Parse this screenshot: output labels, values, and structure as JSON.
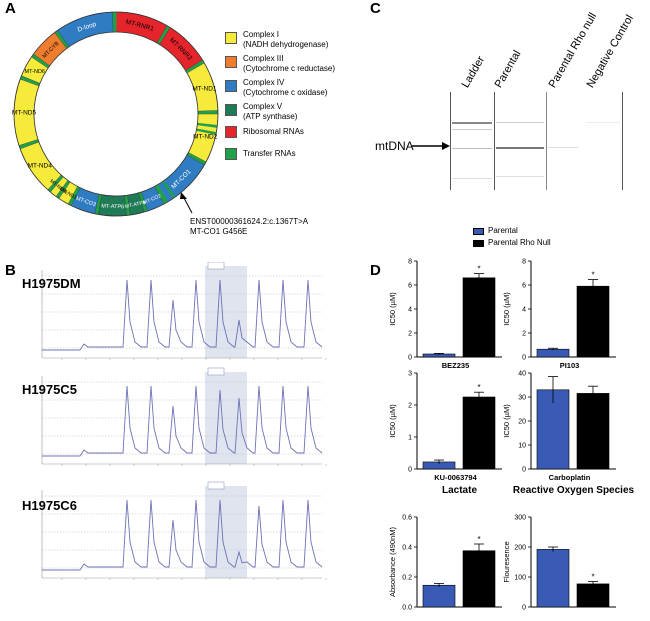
{
  "panels": {
    "A": "A",
    "B": "B",
    "C": "C",
    "D": "D"
  },
  "colors": {
    "complex1": "#f6ea3b",
    "complex3": "#ef7d2d",
    "complex4": "#2f7cc3",
    "complex5": "#1f7a56",
    "rrna": "#e5242b",
    "trna": "#21a04a",
    "parental": "#3a5bb5",
    "rho_null": "#000000",
    "chromatogram": "#6d72b8",
    "highlight": "#dfe4ee"
  },
  "genome": {
    "segments": [
      "D-loop",
      "MT-RNR1",
      "MT-RNR2",
      "MT-ND1",
      "MT-ND2",
      "MT-CO1",
      "MT-CO2",
      "MT-ATP8",
      "MT-ATP6",
      "MT-CO3",
      "MT-ND3",
      "MT-ND4L",
      "MT-ND4",
      "MT-ND5",
      "MT-ND6",
      "MT-CYB"
    ],
    "variant_id": "ENST00000361624.2:c.1367T>A",
    "variant_protein": "MT-CO1 G456E"
  },
  "legend_a": [
    {
      "line1": "Complex I",
      "line2": "(NADH dehydrogenase)",
      "color_key": "complex1"
    },
    {
      "line1": "Complex III",
      "line2": "(Cytochrome c reductase)",
      "color_key": "complex3"
    },
    {
      "line1": "Complex IV",
      "line2": "(Cytochrome c oxidase)",
      "color_key": "complex4"
    },
    {
      "line1": "Complex V",
      "line2": "(ATP synthase)",
      "color_key": "complex5"
    },
    {
      "line1": "Ribosomal RNAs",
      "line2": "",
      "color_key": "rrna"
    },
    {
      "line1": "Transfer RNAs",
      "line2": "",
      "color_key": "trna"
    }
  ],
  "chromatograms": [
    {
      "label": "H1975DM"
    },
    {
      "label": "H1975C5"
    },
    {
      "label": "H1975C6"
    }
  ],
  "gel": {
    "lanes": [
      "Ladder",
      "Parental",
      "Parental Rho null",
      "Negative Control"
    ],
    "band_label": "mtDNA"
  },
  "legend_d": {
    "parental": "Parental",
    "rho_null": "Parental Rho Null"
  },
  "chart_data": [
    {
      "type": "bar",
      "title": "",
      "xlabel": "BEZ235",
      "ylabel": "IC50 (µM)",
      "ylim": [
        0,
        8
      ],
      "yticks": [
        "0",
        "2",
        "4",
        "6",
        "8"
      ],
      "series": [
        {
          "name": "Parental",
          "values": [
            0.25
          ],
          "errors": [
            0.05
          ]
        },
        {
          "name": "Parental Rho Null",
          "values": [
            6.6
          ],
          "errors": [
            0.35
          ]
        }
      ],
      "annotation": "*"
    },
    {
      "type": "bar",
      "title": "",
      "xlabel": "PI103",
      "ylabel": "IC50 (µM)",
      "ylim": [
        0,
        8
      ],
      "yticks": [
        "0",
        "2",
        "4",
        "6",
        "8"
      ],
      "series": [
        {
          "name": "Parental",
          "values": [
            0.65
          ],
          "errors": [
            0.08
          ]
        },
        {
          "name": "Parental Rho Null",
          "values": [
            5.9
          ],
          "errors": [
            0.55
          ]
        }
      ],
      "annotation": "*"
    },
    {
      "type": "bar",
      "title": "",
      "xlabel": "KU-0063794",
      "ylabel": "IC50 (µM)",
      "ylim": [
        0,
        3
      ],
      "yticks": [
        "0",
        "1",
        "2",
        "3"
      ],
      "series": [
        {
          "name": "Parental",
          "values": [
            0.22
          ],
          "errors": [
            0.06
          ]
        },
        {
          "name": "Parental Rho Null",
          "values": [
            2.25
          ],
          "errors": [
            0.15
          ]
        }
      ],
      "annotation": "*"
    },
    {
      "type": "bar",
      "title": "",
      "xlabel": "Carboplatin",
      "ylabel": "IC50 (µM)",
      "ylim": [
        0,
        40
      ],
      "yticks": [
        "0",
        "10",
        "20",
        "30",
        "40"
      ],
      "series": [
        {
          "name": "Parental",
          "values": [
            33
          ],
          "errors": [
            5.5
          ]
        },
        {
          "name": "Parental Rho Null",
          "values": [
            31.5
          ],
          "errors": [
            3
          ]
        }
      ],
      "annotation": ""
    },
    {
      "type": "bar",
      "title": "Lactate",
      "xlabel": "",
      "ylabel": "Absorbance (490nM)",
      "ylim": [
        0,
        0.6
      ],
      "yticks": [
        "0.0",
        "0.2",
        "0.4",
        "0.6"
      ],
      "series": [
        {
          "name": "Parental",
          "values": [
            0.145
          ],
          "errors": [
            0.012
          ]
        },
        {
          "name": "Parental Rho Null",
          "values": [
            0.375
          ],
          "errors": [
            0.045
          ]
        }
      ],
      "annotation": "*"
    },
    {
      "type": "bar",
      "title": "Reactive Oxygen Species",
      "xlabel": "",
      "ylabel": "Flouresence",
      "ylim": [
        0,
        300
      ],
      "yticks": [
        "0",
        "100",
        "200",
        "300"
      ],
      "series": [
        {
          "name": "Parental",
          "values": [
            192
          ],
          "errors": [
            8
          ]
        },
        {
          "name": "Parental Rho Null",
          "values": [
            77
          ],
          "errors": [
            8
          ]
        }
      ],
      "annotation": "*"
    }
  ]
}
